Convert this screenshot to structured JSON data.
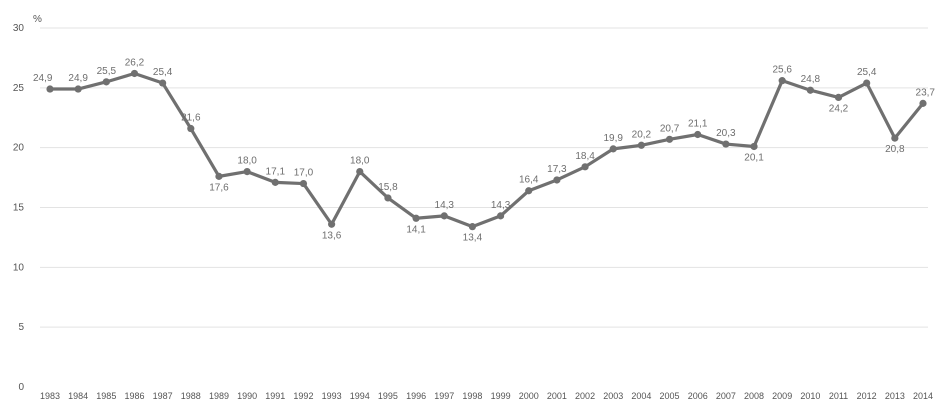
{
  "chart_data": {
    "type": "line",
    "ylabel": "%",
    "ylim": [
      0,
      30
    ],
    "yticks": [
      0,
      5,
      10,
      15,
      20,
      25,
      30
    ],
    "grid": true,
    "colors": {
      "line": "#707070",
      "grid": "#e3e3e3",
      "text": "#555555"
    },
    "x": [
      "1983",
      "1984",
      "1985",
      "1986",
      "1987",
      "1988",
      "1989",
      "1990",
      "1991",
      "1992",
      "1993",
      "1994",
      "1995",
      "1996",
      "1997",
      "1998",
      "1999",
      "2000",
      "2001",
      "2002",
      "2003",
      "2004",
      "2005",
      "2006",
      "2007",
      "2008",
      "2009",
      "2010",
      "2011",
      "2012",
      "2013",
      "2014"
    ],
    "series": [
      {
        "values": [
          24.9,
          24.9,
          25.5,
          26.2,
          25.4,
          21.6,
          17.6,
          18.0,
          17.1,
          17.0,
          13.6,
          18.0,
          15.8,
          14.1,
          14.3,
          13.4,
          14.3,
          16.4,
          17.3,
          18.4,
          19.9,
          20.2,
          20.7,
          21.1,
          20.3,
          20.1,
          25.6,
          24.8,
          24.2,
          25.4,
          20.8,
          23.7
        ],
        "labels": [
          "24,9",
          "24,9",
          "25,5",
          "26,2",
          "25,4",
          "21,6",
          "17,6",
          "18,0",
          "17,1",
          "17,0",
          "13,6",
          "18,0",
          "15,8",
          "14,1",
          "14,3",
          "13,4",
          "14,3",
          "16,4",
          "17,3",
          "18,4",
          "19,9",
          "20,2",
          "20,7",
          "21,1",
          "20,3",
          "20,1",
          "25,6",
          "24,8",
          "24,2",
          "25,4",
          "20,8",
          "23,7"
        ]
      }
    ]
  }
}
